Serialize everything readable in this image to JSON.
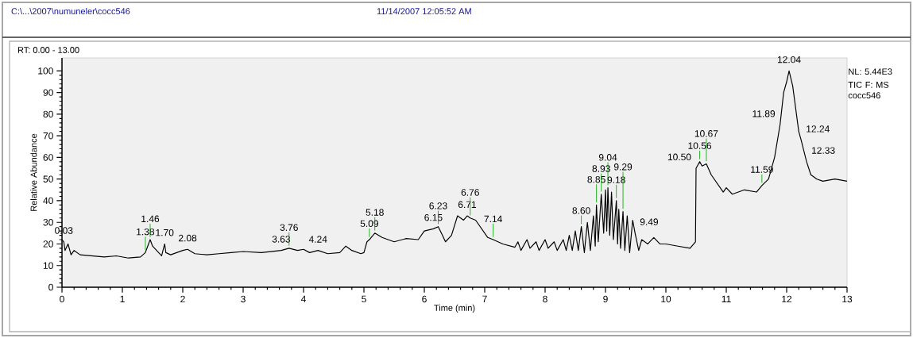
{
  "chart_data": {
    "type": "line",
    "title": "RT: 0.00 - 13.00",
    "xlabel": "Time (min)",
    "ylabel": "Relative Abundance",
    "annotations": [
      "C:\\...\\2007\\numuneler\\cocc546",
      "11/14/2007 12:05:52 AM",
      "NL: 5.44E3",
      "TIC F: MS cocc546",
      {
        "text": "0.03",
        "x": 0.03,
        "y": 21
      },
      {
        "text": "1.38",
        "x": 1.38,
        "y": 16
      },
      {
        "text": "1.46",
        "x": 1.46,
        "y": 22
      },
      {
        "text": "1.70",
        "x": 1.7,
        "y": 20
      },
      {
        "text": "2.08",
        "x": 2.08,
        "y": 17.5
      },
      {
        "text": "3.63",
        "x": 3.63,
        "y": 17
      },
      {
        "text": "3.76",
        "x": 3.76,
        "y": 18
      },
      {
        "text": "4.24",
        "x": 4.24,
        "y": 17
      },
      {
        "text": "5.09",
        "x": 5.09,
        "y": 22
      },
      {
        "text": "5.18",
        "x": 5.18,
        "y": 25
      },
      {
        "text": "6.15",
        "x": 6.15,
        "y": 27
      },
      {
        "text": "6.23",
        "x": 6.23,
        "y": 28
      },
      {
        "text": "6.71",
        "x": 6.71,
        "y": 33
      },
      {
        "text": "6.76",
        "x": 6.76,
        "y": 32
      },
      {
        "text": "7.14",
        "x": 7.14,
        "y": 22
      },
      {
        "text": "8.60",
        "x": 8.6,
        "y": 28
      },
      {
        "text": "8.85",
        "x": 8.85,
        "y": 38
      },
      {
        "text": "8.93",
        "x": 8.93,
        "y": 43
      },
      {
        "text": "9.04",
        "x": 9.04,
        "y": 46
      },
      {
        "text": "9.18",
        "x": 9.18,
        "y": 40
      },
      {
        "text": "9.29",
        "x": 9.29,
        "y": 35
      },
      {
        "text": "9.49",
        "x": 9.49,
        "y": 25
      },
      {
        "text": "10.50",
        "x": 10.5,
        "y": 55
      },
      {
        "text": "10.56",
        "x": 10.56,
        "y": 58
      },
      {
        "text": "10.67",
        "x": 10.67,
        "y": 57
      },
      {
        "text": "11.59",
        "x": 11.59,
        "y": 47
      },
      {
        "text": "11.89",
        "x": 11.89,
        "y": 75
      },
      {
        "text": "12.04",
        "x": 12.04,
        "y": 100
      },
      {
        "text": "12.24",
        "x": 12.24,
        "y": 68
      },
      {
        "text": "12.33",
        "x": 12.33,
        "y": 58
      }
    ],
    "x": [
      0,
      0.03,
      0.05,
      0.1,
      0.15,
      0.2,
      0.3,
      0.5,
      0.7,
      0.9,
      1.1,
      1.3,
      1.38,
      1.42,
      1.46,
      1.5,
      1.6,
      1.65,
      1.7,
      1.72,
      1.8,
      2.0,
      2.08,
      2.2,
      2.4,
      2.6,
      2.8,
      3.0,
      3.3,
      3.63,
      3.76,
      3.9,
      4.0,
      4.1,
      4.24,
      4.4,
      4.6,
      4.7,
      4.8,
      4.95,
      5.0,
      5.05,
      5.09,
      5.18,
      5.3,
      5.5,
      5.7,
      5.9,
      6.0,
      6.15,
      6.23,
      6.3,
      6.35,
      6.45,
      6.55,
      6.65,
      6.71,
      6.76,
      6.85,
      6.95,
      7.05,
      7.14,
      7.3,
      7.5,
      7.55,
      7.6,
      7.7,
      7.75,
      7.85,
      7.9,
      8.0,
      8.05,
      8.15,
      8.2,
      8.3,
      8.35,
      8.4,
      8.45,
      8.5,
      8.55,
      8.6,
      8.65,
      8.7,
      8.75,
      8.8,
      8.83,
      8.85,
      8.88,
      8.93,
      8.97,
      9.0,
      9.02,
      9.04,
      9.07,
      9.1,
      9.13,
      9.18,
      9.2,
      9.22,
      9.25,
      9.29,
      9.32,
      9.36,
      9.4,
      9.45,
      9.49,
      9.55,
      9.6,
      9.7,
      9.8,
      9.9,
      10.0,
      10.2,
      10.4,
      10.49,
      10.5,
      10.52,
      10.56,
      10.6,
      10.67,
      10.75,
      10.85,
      10.95,
      11.0,
      11.1,
      11.3,
      11.5,
      11.59,
      11.7,
      11.8,
      11.89,
      11.95,
      12.0,
      12.04,
      12.1,
      12.2,
      12.24,
      12.33,
      12.4,
      12.5,
      12.6,
      12.8,
      13.0
    ],
    "values": [
      22,
      21,
      17,
      20,
      15,
      17,
      15,
      14.5,
      14,
      14.5,
      13.5,
      14,
      16,
      19,
      22,
      19,
      16,
      14.5,
      20,
      16,
      15,
      17,
      17.5,
      15.5,
      15,
      15.5,
      16,
      16.5,
      16,
      17,
      18,
      17,
      17.5,
      16,
      17,
      15.5,
      16,
      19,
      17,
      15.5,
      16,
      21,
      22,
      25,
      23,
      21,
      22.5,
      22,
      26,
      27,
      28,
      24,
      21,
      24,
      33,
      31,
      33,
      32,
      31,
      27,
      23,
      22,
      20,
      18.5,
      21,
      17,
      22,
      18,
      21,
      17,
      22,
      18,
      21,
      17,
      22,
      17,
      24,
      17,
      26,
      17,
      28,
      16,
      30,
      17,
      33,
      19,
      38,
      21,
      43,
      25,
      45,
      26,
      46,
      24,
      44,
      22,
      40,
      20,
      36,
      18,
      35,
      17,
      33,
      16,
      31,
      25,
      17,
      22,
      20,
      23,
      20,
      20,
      19,
      18,
      21,
      55,
      56,
      58,
      56,
      57,
      52,
      48,
      44,
      46,
      43,
      45,
      44,
      47,
      50,
      60,
      75,
      90,
      95,
      100,
      93,
      72,
      68,
      58,
      52,
      50,
      49,
      50,
      49
    ],
    "color": "#000000",
    "xlim": [
      0,
      13
    ],
    "ylim": [
      0,
      106
    ],
    "xticks": [
      0,
      1,
      2,
      3,
      4,
      5,
      6,
      7,
      8,
      9,
      10,
      11,
      12,
      13
    ],
    "yticks": [
      0,
      10,
      20,
      30,
      40,
      50,
      60,
      70,
      80,
      90,
      100
    ]
  }
}
